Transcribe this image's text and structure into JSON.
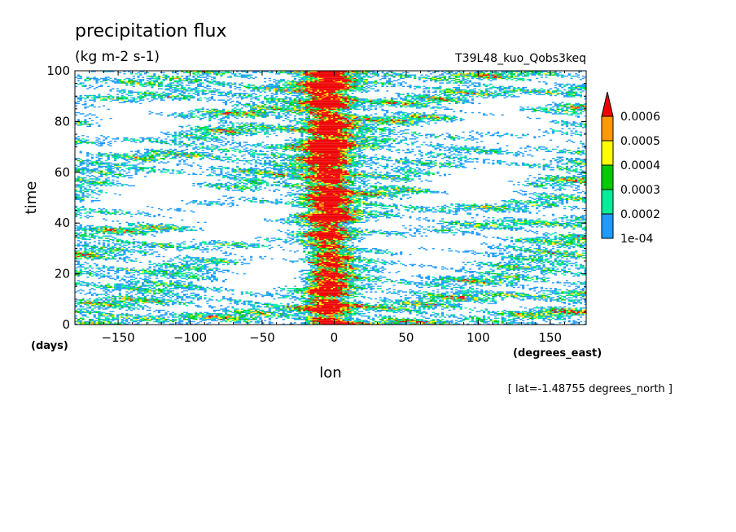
{
  "chart_data": {
    "type": "heatmap",
    "title": "precipitation flux",
    "subtitle": "(kg m-2 s-1)",
    "run_label": "T39L48_kuo_Qobs3keq",
    "xlabel": "lon",
    "x_units": "(degrees_east)",
    "ylabel": "time",
    "y_units": "(days)",
    "footer": "[ lat=-1.48755 degrees_north ]",
    "xlim": [
      -180,
      175
    ],
    "ylim": [
      0,
      100
    ],
    "x_ticks": [
      -150,
      -100,
      -50,
      0,
      50,
      100,
      150
    ],
    "x_tick_labels": [
      "−150",
      "−100",
      "−50",
      "0",
      "50",
      "100",
      "150"
    ],
    "y_ticks": [
      0,
      20,
      40,
      60,
      80,
      100
    ],
    "y_tick_labels": [
      "0",
      "20",
      "40",
      "60",
      "80",
      "100"
    ],
    "colorbar": {
      "levels": [
        "1e-04",
        "0.0002",
        "0.0003",
        "0.0004",
        "0.0005",
        "0.0006"
      ],
      "colors": [
        "#1e9bff",
        "#00ee99",
        "#00cc00",
        "#ffff00",
        "#ff9900",
        "#ee0000"
      ],
      "extend": "max"
    },
    "field_description_values": {
      "dry_region_centers": [
        [
          -120,
          50
        ],
        [
          -60,
          40
        ],
        [
          100,
          55
        ],
        [
          -40,
          20
        ],
        [
          60,
          30
        ],
        [
          120,
          78
        ],
        [
          -145,
          80
        ]
      ],
      "convective_center_lon": -5,
      "convective_band_width_deg": 16
    }
  }
}
